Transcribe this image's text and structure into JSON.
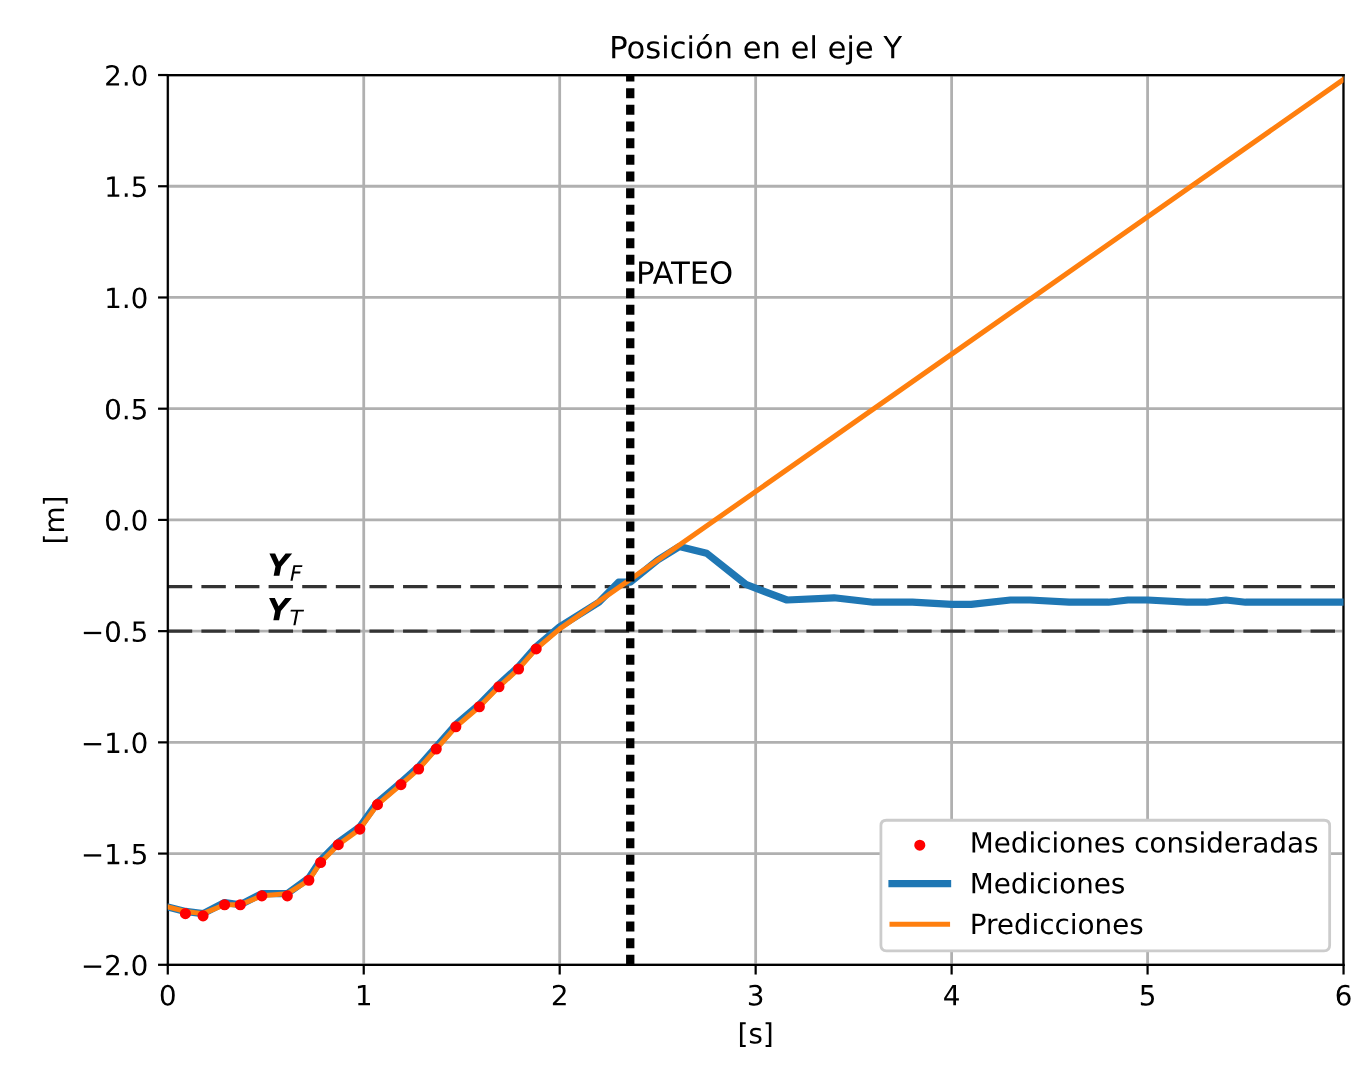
{
  "chart_data": {
    "type": "line",
    "title": "Posición en el eje Y",
    "xlabel": "[s]",
    "ylabel": "[m]",
    "series": [
      {
        "name": "Mediciones consideradas",
        "type": "scatter",
        "color": "#ff0000",
        "marker": "circle",
        "x": [
          0.09,
          0.18,
          0.29,
          0.37,
          0.48,
          0.61,
          0.72,
          0.78,
          0.87,
          0.98,
          1.07,
          1.19,
          1.28,
          1.37,
          1.47,
          1.59,
          1.69,
          1.79,
          1.88
        ],
        "values": [
          -1.77,
          -1.78,
          -1.73,
          -1.73,
          -1.69,
          -1.69,
          -1.62,
          -1.54,
          -1.46,
          -1.39,
          -1.28,
          -1.19,
          -1.12,
          -1.03,
          -0.93,
          -0.84,
          -0.75,
          -0.67,
          -0.58
        ]
      },
      {
        "name": "Mediciones",
        "color": "#1f77b4",
        "x": [
          0,
          0.09,
          0.18,
          0.29,
          0.37,
          0.48,
          0.61,
          0.72,
          0.78,
          0.87,
          0.98,
          1.07,
          1.19,
          1.28,
          1.37,
          1.47,
          1.59,
          1.69,
          1.79,
          1.88,
          2.0,
          2.2,
          2.3,
          2.36,
          2.5,
          2.61,
          2.75,
          2.95,
          3.16,
          3.4,
          3.6,
          3.8,
          4.0,
          4.1,
          4.3,
          4.4,
          4.6,
          4.8,
          4.9,
          5.0,
          5.2,
          5.3,
          5.4,
          5.5,
          6.0
        ],
        "values": [
          -1.74,
          -1.76,
          -1.77,
          -1.72,
          -1.73,
          -1.68,
          -1.68,
          -1.61,
          -1.53,
          -1.45,
          -1.38,
          -1.27,
          -1.18,
          -1.11,
          -1.02,
          -0.92,
          -0.83,
          -0.74,
          -0.66,
          -0.57,
          -0.48,
          -0.37,
          -0.28,
          -0.28,
          -0.18,
          -0.12,
          -0.15,
          -0.29,
          -0.36,
          -0.35,
          -0.37,
          -0.37,
          -0.38,
          -0.38,
          -0.36,
          -0.36,
          -0.37,
          -0.37,
          -0.36,
          -0.36,
          -0.37,
          -0.37,
          -0.36,
          -0.37,
          -0.37
        ]
      },
      {
        "name": "Predicciones",
        "color": "#ff7f0e",
        "x": [
          0,
          0.09,
          0.18,
          0.29,
          0.37,
          0.48,
          0.61,
          0.72,
          0.78,
          0.87,
          0.98,
          1.07,
          1.19,
          1.28,
          1.37,
          1.47,
          1.59,
          1.69,
          1.79,
          1.88,
          2.0,
          6.0
        ],
        "values": [
          -1.74,
          -1.76,
          -1.77,
          -1.73,
          -1.73,
          -1.69,
          -1.68,
          -1.62,
          -1.54,
          -1.46,
          -1.39,
          -1.28,
          -1.19,
          -1.12,
          -1.03,
          -0.93,
          -0.84,
          -0.75,
          -0.67,
          -0.58,
          -0.49,
          1.98
        ]
      }
    ],
    "ref_lines": [
      {
        "axis": "x",
        "value": 2.36,
        "label": "PATEO",
        "color": "#000000",
        "line_style": "dotted"
      },
      {
        "axis": "y",
        "value": -0.3,
        "label": "Y$_{F}$",
        "color": "#333333",
        "line_style": "dashed"
      },
      {
        "axis": "y",
        "value": -0.5,
        "label": "Y$_{T}$",
        "color": "#333333",
        "line_style": "dashed"
      }
    ],
    "xlim": [
      0,
      6
    ],
    "xticks": [
      0,
      1,
      2,
      3,
      4,
      5,
      6
    ],
    "ylim": [
      -2.0,
      2.0
    ],
    "yticks": [
      {
        "value": -2.0,
        "label": "−2.0"
      },
      {
        "value": -1.5,
        "label": "−1.5"
      },
      {
        "value": -1.0,
        "label": "−1.0"
      },
      {
        "value": -0.5,
        "label": "−0.5"
      },
      {
        "value": 0.0,
        "label": "0.0"
      },
      {
        "value": 0.5,
        "label": "0.5"
      },
      {
        "value": 1.0,
        "label": "1.0"
      },
      {
        "value": 1.5,
        "label": "1.5"
      },
      {
        "value": 2.0,
        "label": "2.0"
      }
    ],
    "grid": true,
    "legend": "bottom right"
  }
}
